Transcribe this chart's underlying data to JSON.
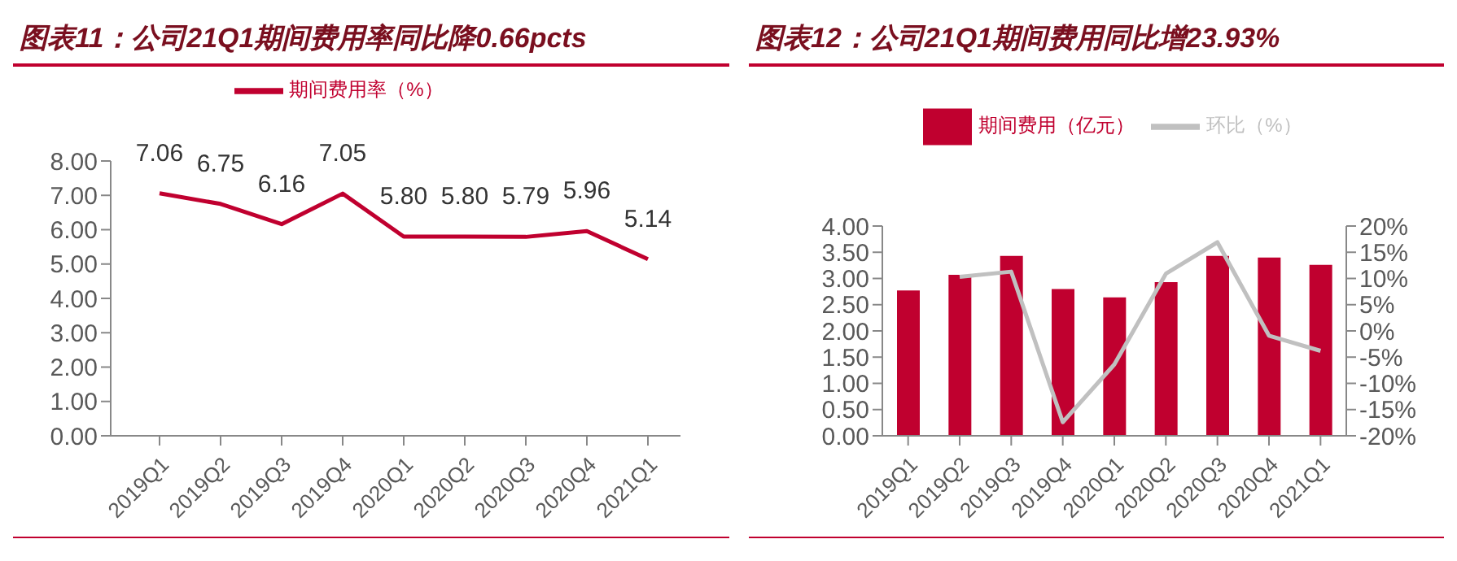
{
  "chart_data": [
    {
      "type": "line",
      "title": "图表11：公司21Q1期间费用率同比降0.66pcts",
      "categories": [
        "2019Q1",
        "2019Q2",
        "2019Q3",
        "2019Q4",
        "2020Q1",
        "2020Q2",
        "2020Q3",
        "2020Q4",
        "2021Q1"
      ],
      "series": [
        {
          "name": "期间费用率（%）",
          "color": "#c0002f",
          "values": [
            7.06,
            6.75,
            6.16,
            7.05,
            5.8,
            5.8,
            5.79,
            5.96,
            5.14
          ],
          "value_labels": [
            "7.06",
            "6.75",
            "6.16",
            "7.05",
            "5.80",
            "5.80",
            "5.79",
            "5.96",
            "5.14"
          ]
        }
      ],
      "ylim": [
        0,
        8
      ],
      "yticks": [
        {
          "value": 0,
          "label": "0.00"
        },
        {
          "value": 1,
          "label": "1.00"
        },
        {
          "value": 2,
          "label": "2.00"
        },
        {
          "value": 3,
          "label": "3.00"
        },
        {
          "value": 4,
          "label": "4.00"
        },
        {
          "value": 5,
          "label": "5.00"
        },
        {
          "value": 6,
          "label": "6.00"
        },
        {
          "value": 7,
          "label": "7.00"
        },
        {
          "value": 8,
          "label": "8.00"
        }
      ],
      "legend": "top",
      "marker": "none"
    },
    {
      "type": "bar",
      "title": "图表12：公司21Q1期间费用同比增23.93%",
      "categories": [
        "2019Q1",
        "2019Q2",
        "2019Q3",
        "2019Q4",
        "2020Q1",
        "2020Q2",
        "2020Q3",
        "2020Q4",
        "2021Q1"
      ],
      "series": [
        {
          "name": "期间费用（亿元）",
          "color": "#c0002f",
          "values": [
            2.77,
            3.07,
            3.43,
            2.8,
            2.64,
            2.93,
            3.43,
            3.4,
            3.26
          ]
        },
        {
          "name": "环比（%）",
          "type": "line",
          "axis": "y2",
          "color": "#c0c0c0",
          "values": [
            null,
            10.3,
            11.3,
            -17.4,
            -6.4,
            10.9,
            16.9,
            -0.9,
            -3.8
          ]
        }
      ],
      "ylim": [
        0,
        4
      ],
      "yticks": [
        {
          "value": 0,
          "label": "0.00"
        },
        {
          "value": 0.5,
          "label": "0.50"
        },
        {
          "value": 1,
          "label": "1.00"
        },
        {
          "value": 1.5,
          "label": "1.50"
        },
        {
          "value": 2,
          "label": "2.00"
        },
        {
          "value": 2.5,
          "label": "2.50"
        },
        {
          "value": 3,
          "label": "3.00"
        },
        {
          "value": 3.5,
          "label": "3.50"
        },
        {
          "value": 4,
          "label": "4.00"
        }
      ],
      "y2lim": [
        -20,
        20
      ],
      "y2ticks": [
        {
          "value": -20,
          "label": "-20%"
        },
        {
          "value": -15,
          "label": "-15%"
        },
        {
          "value": -10,
          "label": "-10%"
        },
        {
          "value": -5,
          "label": "-5%"
        },
        {
          "value": 0,
          "label": "0%"
        },
        {
          "value": 5,
          "label": "5%"
        },
        {
          "value": 10,
          "label": "10%"
        },
        {
          "value": 15,
          "label": "15%"
        },
        {
          "value": 20,
          "label": "20%"
        }
      ],
      "legend": "top",
      "marker": "none"
    }
  ]
}
